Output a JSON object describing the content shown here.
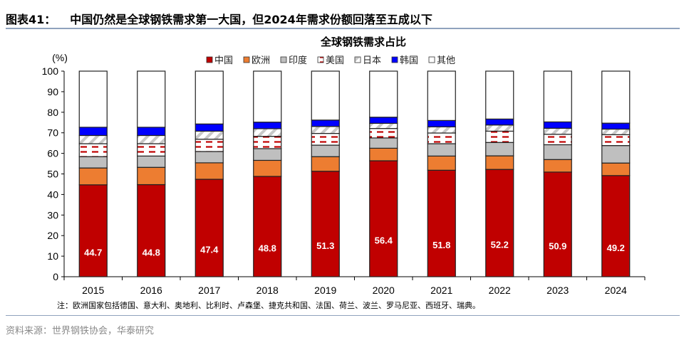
{
  "header": {
    "figure_no": "图表41：",
    "title": "中国仍然是全球钢铁需求第一大国，但2024年需求份额回落至五成以下"
  },
  "note": "注：欧洲国家包括德国、意大利、奥地利、比利时、卢森堡、捷克共和国、法国、荷兰、波兰、罗马尼亚、西班牙、瑞典。",
  "source": "资料来源：世界钢铁协会，华泰研究",
  "chart_data": {
    "type": "bar",
    "stacked": true,
    "title": "全球钢铁需求占比",
    "ylabel": "(%)",
    "ylim": [
      0,
      100
    ],
    "yticks": [
      0,
      10,
      20,
      30,
      40,
      50,
      60,
      70,
      80,
      90,
      100
    ],
    "grid": false,
    "legend_position": "top",
    "categories": [
      "2015",
      "2016",
      "2017",
      "2018",
      "2019",
      "2020",
      "2021",
      "2022",
      "2023",
      "2024"
    ],
    "series": [
      {
        "name": "中国",
        "color": "#c00000",
        "fill": "solid",
        "show_labels": true,
        "values": [
          44.7,
          44.8,
          47.4,
          48.8,
          51.3,
          56.4,
          51.8,
          52.2,
          50.9,
          49.2
        ]
      },
      {
        "name": "欧洲",
        "color": "#ed7d31",
        "fill": "solid",
        "values": [
          8.2,
          8.4,
          8.0,
          7.8,
          7.1,
          6.1,
          6.9,
          6.6,
          6.1,
          6.1
        ]
      },
      {
        "name": "印度",
        "color": "#bfbfbf",
        "fill": "solid",
        "values": [
          5.5,
          5.5,
          5.5,
          5.7,
          5.6,
          5.0,
          6.0,
          6.5,
          7.2,
          8.5
        ]
      },
      {
        "name": "美国",
        "color": "#c00000",
        "fill": "dashed-lines",
        "values": [
          6.3,
          6.0,
          6.0,
          6.0,
          5.7,
          4.6,
          5.2,
          5.5,
          5.1,
          5.3
        ]
      },
      {
        "name": "日本",
        "color": "#bfbfbf",
        "fill": "diagonal-hatch",
        "values": [
          4.0,
          4.0,
          3.9,
          3.7,
          3.4,
          2.5,
          3.0,
          3.0,
          2.9,
          2.7
        ]
      },
      {
        "name": "韩国",
        "color": "#0000ff",
        "fill": "solid",
        "values": [
          4.0,
          4.0,
          3.5,
          3.2,
          3.1,
          3.0,
          3.1,
          2.9,
          3.1,
          2.9
        ]
      },
      {
        "name": "其他",
        "color": "#ffffff",
        "fill": "solid",
        "values": [
          27.3,
          27.3,
          25.7,
          24.8,
          23.8,
          22.4,
          24.0,
          23.3,
          24.7,
          25.3
        ]
      }
    ]
  }
}
